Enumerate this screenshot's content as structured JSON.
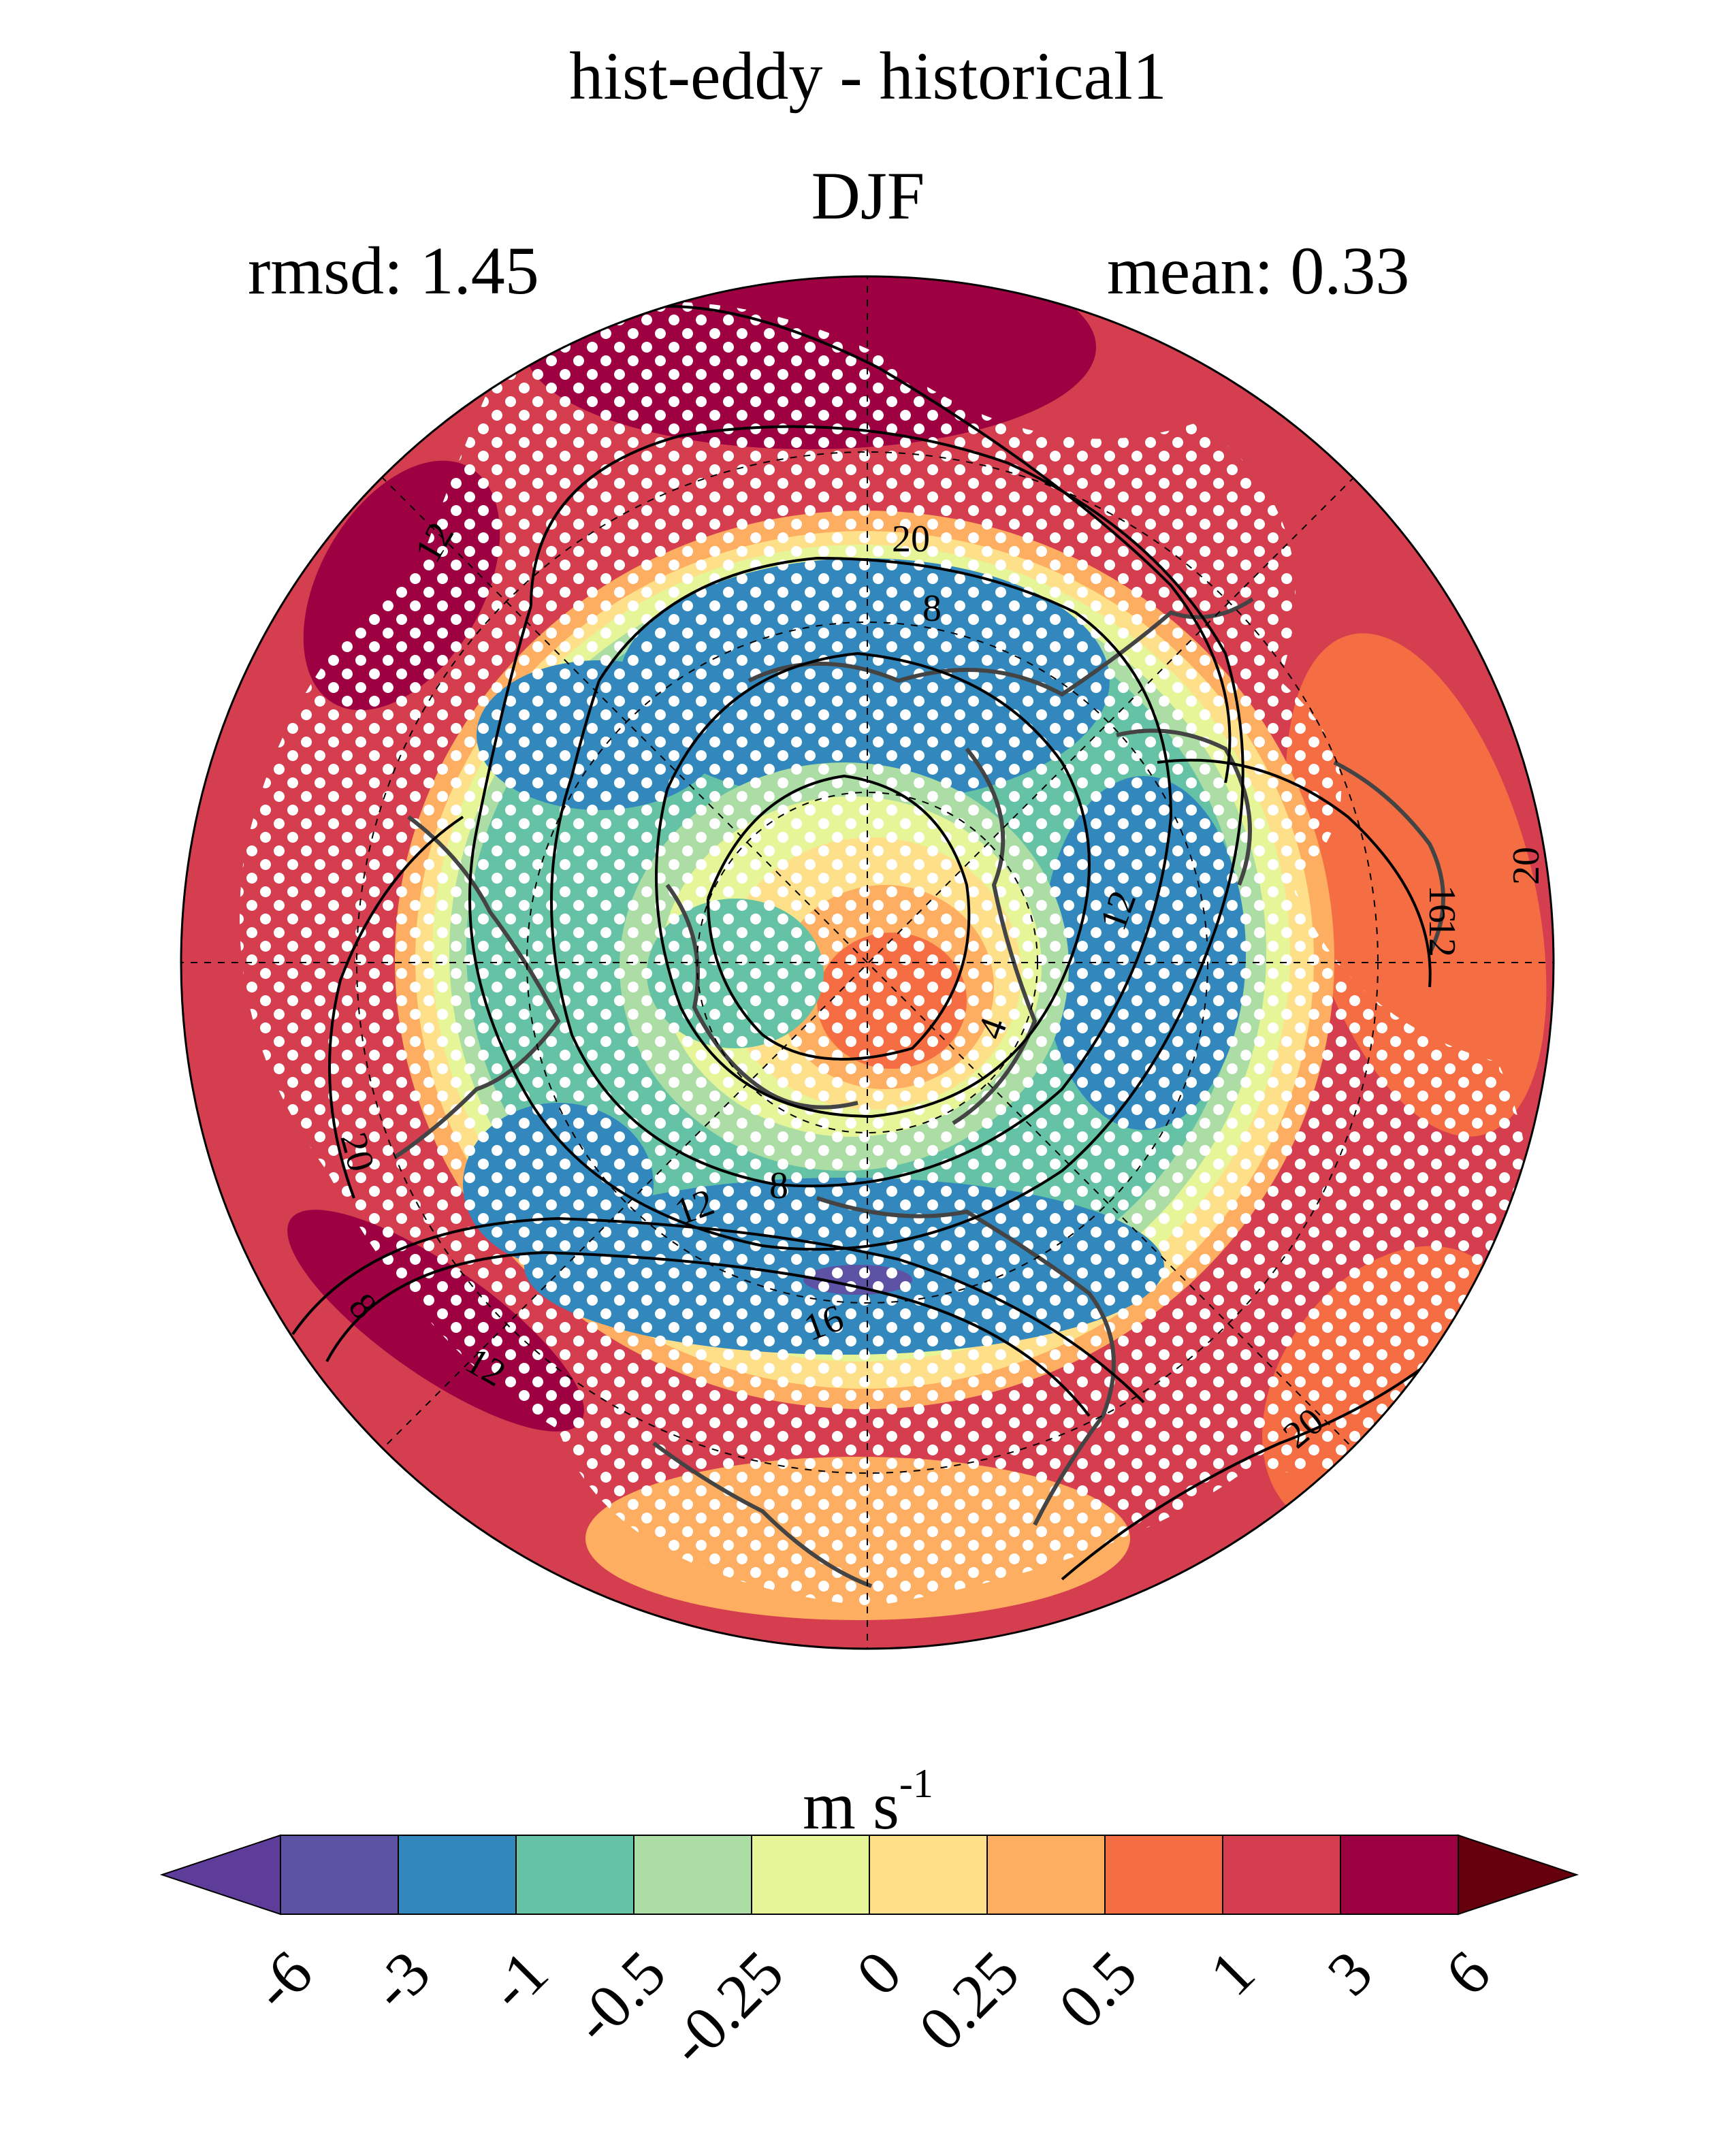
{
  "title": "hist-eddy - historical1",
  "season": "DJF",
  "stats": {
    "rmsd": "rmsd: 1.45",
    "mean": "mean: 0.33"
  },
  "colorbar": {
    "units": "m s",
    "units_exp": "-1",
    "ticks": [
      "-6",
      "-3",
      "-1",
      "-0.5",
      "-0.25",
      "0",
      "0.25",
      "0.5",
      "1",
      "3",
      "6"
    ],
    "colors": [
      "#5e3c99",
      "#5e52a5",
      "#3288bd",
      "#66c2a5",
      "#abdda4",
      "#e6f598",
      "#fee08b",
      "#fdae61",
      "#f46d43",
      "#d53e4f",
      "#9e0142",
      "#67000d"
    ]
  },
  "contour_labels": [
    "12",
    "20",
    "8",
    "12",
    "16",
    "12",
    "20",
    "4",
    "20",
    "8",
    "12",
    "16",
    "12",
    "8",
    "20",
    "16"
  ]
}
